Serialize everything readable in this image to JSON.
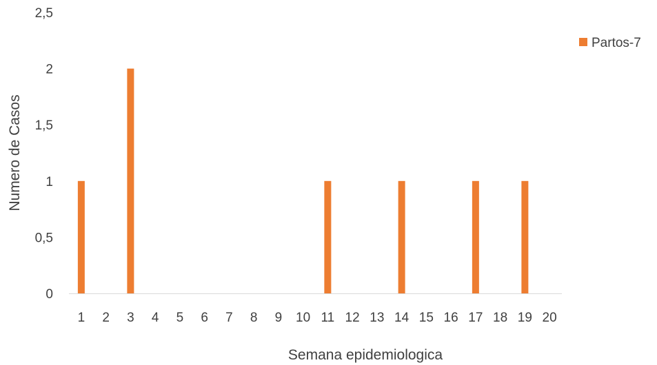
{
  "chart_data": {
    "type": "bar",
    "categories": [
      "1",
      "2",
      "3",
      "4",
      "5",
      "6",
      "7",
      "8",
      "9",
      "10",
      "11",
      "12",
      "13",
      "14",
      "15",
      "16",
      "17",
      "18",
      "19",
      "20"
    ],
    "series": [
      {
        "name": "Partos-7",
        "values": [
          1,
          0,
          2,
          0,
          0,
          0,
          0,
          0,
          0,
          0,
          1,
          0,
          0,
          1,
          0,
          0,
          1,
          0,
          1,
          0
        ],
        "color": "#ED7D31"
      }
    ],
    "xlabel": "Semana epidemiologica",
    "ylabel": "Numero de Casos",
    "ylim": [
      0,
      2.5
    ],
    "yticks": [
      "0",
      "0,5",
      "1",
      "1,5",
      "2",
      "2,5"
    ],
    "grid": false,
    "legend": "right"
  }
}
